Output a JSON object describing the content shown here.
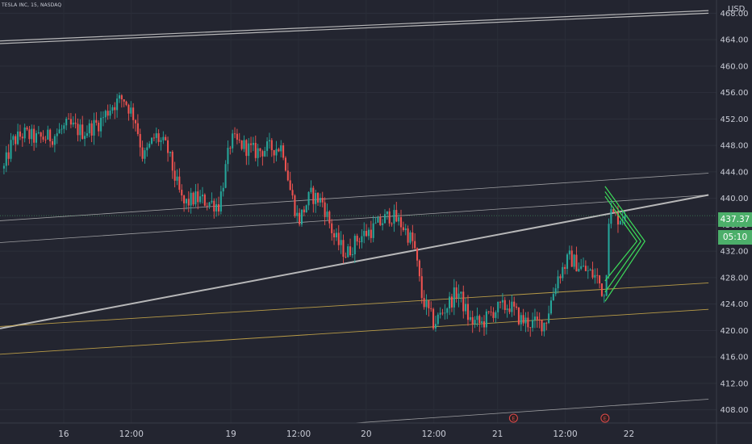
{
  "header": {
    "ticker": "TESLA INC, 15, NASDAQ"
  },
  "price_axis": {
    "currency": "USD",
    "last_price": "437.37",
    "countdown": "05:10"
  },
  "colors": {
    "background": "#232530",
    "up_candle": "#26a69a",
    "down_candle": "#ef5350",
    "trend_line": "#c8c8c8",
    "support_line": "#c9a84a",
    "pennant": "#3ddc5a",
    "axis_text": "#c9ccd6",
    "last_price_tag": "#4caf6a",
    "event_marker": "#e04848"
  },
  "chart_data": {
    "type": "candlestick",
    "ylim": [
      406,
      470
    ],
    "y_ticks": [
      408,
      412,
      416,
      420,
      424,
      428,
      432,
      436,
      440,
      444,
      448,
      452,
      456,
      460,
      464,
      468
    ],
    "x_ticks": [
      "16",
      "12:00",
      "19",
      "12:00",
      "20",
      "12:00",
      "21",
      "12:00",
      "22"
    ],
    "x_tick_positions": [
      0.5,
      2.2,
      4.7,
      6.4,
      8.1,
      9.8,
      11.4,
      13.1,
      14.7
    ],
    "x_range": [
      -1.1,
      16.9
    ],
    "path_keypoints": [
      [
        -1.0,
        444.5
      ],
      [
        -0.8,
        448.5
      ],
      [
        -0.5,
        449.8
      ],
      [
        -0.2,
        449.0
      ],
      [
        0.2,
        449.3
      ],
      [
        0.6,
        451.0
      ],
      [
        1.0,
        450.0
      ],
      [
        1.4,
        451.5
      ],
      [
        1.7,
        454.0
      ],
      [
        2.0,
        455.2
      ],
      [
        2.3,
        452.0
      ],
      [
        2.5,
        446.0
      ],
      [
        2.8,
        449.5
      ],
      [
        3.1,
        447.5
      ],
      [
        3.3,
        443.0
      ],
      [
        3.5,
        439.0
      ],
      [
        3.8,
        440.0
      ],
      [
        4.1,
        439.5
      ],
      [
        4.4,
        439.0
      ],
      [
        4.7,
        448.8
      ],
      [
        5.0,
        448.0
      ],
      [
        5.3,
        447.0
      ],
      [
        5.6,
        447.5
      ],
      [
        6.0,
        447.8
      ],
      [
        6.2,
        441.0
      ],
      [
        6.4,
        436.5
      ],
      [
        6.7,
        440.5
      ],
      [
        7.0,
        439.5
      ],
      [
        7.3,
        434.0
      ],
      [
        7.6,
        431.5
      ],
      [
        7.9,
        434.0
      ],
      [
        8.3,
        435.5
      ],
      [
        8.7,
        437.5
      ],
      [
        9.0,
        436.0
      ],
      [
        9.3,
        433.0
      ],
      [
        9.5,
        425.0
      ],
      [
        9.8,
        421.0
      ],
      [
        10.1,
        423.5
      ],
      [
        10.4,
        426.0
      ],
      [
        10.7,
        421.5
      ],
      [
        11.0,
        421.0
      ],
      [
        11.3,
        423.0
      ],
      [
        11.7,
        423.8
      ],
      [
        12.0,
        421.5
      ],
      [
        12.3,
        421.0
      ],
      [
        12.6,
        421.2
      ],
      [
        12.9,
        428.0
      ],
      [
        13.2,
        431.0
      ],
      [
        13.5,
        429.5
      ],
      [
        13.9,
        428.0
      ],
      [
        14.1,
        425.0
      ],
      [
        14.2,
        438.0
      ],
      [
        14.4,
        437.0
      ],
      [
        14.6,
        437.4
      ]
    ],
    "trend_lines": [
      {
        "kind": "channel-top",
        "points": [
          [
            -1.1,
            463.8
          ],
          [
            16.7,
            468.4
          ]
        ]
      },
      {
        "kind": "channel-top",
        "points": [
          [
            -1.1,
            463.4
          ],
          [
            16.7,
            468.0
          ]
        ]
      },
      {
        "kind": "rising-support",
        "points": [
          [
            -1.1,
            420.3
          ],
          [
            16.7,
            440.5
          ]
        ]
      },
      {
        "kind": "thin",
        "points": [
          [
            -1.1,
            436.6
          ],
          [
            16.7,
            443.8
          ]
        ]
      },
      {
        "kind": "thin",
        "points": [
          [
            -1.1,
            433.3
          ],
          [
            16.7,
            440.5
          ]
        ]
      },
      {
        "kind": "thin",
        "points": [
          [
            7.8,
            406.0
          ],
          [
            16.7,
            409.6
          ]
        ]
      },
      {
        "kind": "support",
        "points": [
          [
            -1.1,
            420.6
          ],
          [
            16.7,
            427.2
          ]
        ]
      },
      {
        "kind": "support",
        "points": [
          [
            -1.1,
            416.4
          ],
          [
            16.7,
            423.2
          ]
        ]
      }
    ],
    "pennant": {
      "outer": [
        [
          14.1,
          441.8
        ],
        [
          15.1,
          433.5
        ],
        [
          14.1,
          424.4
        ]
      ],
      "inner": [
        [
          14.1,
          440.3
        ],
        [
          14.9,
          433.5
        ],
        [
          14.1,
          427.5
        ]
      ],
      "lines": [
        [
          [
            14.1,
            441.0
          ],
          [
            15.0,
            433.5
          ]
        ],
        [
          [
            14.1,
            425.8
          ],
          [
            15.0,
            433.5
          ]
        ]
      ]
    },
    "event_markers": [
      {
        "label": "E",
        "x": 11.8
      },
      {
        "label": "E",
        "x": 14.1
      }
    ],
    "last_price": 437.37
  }
}
